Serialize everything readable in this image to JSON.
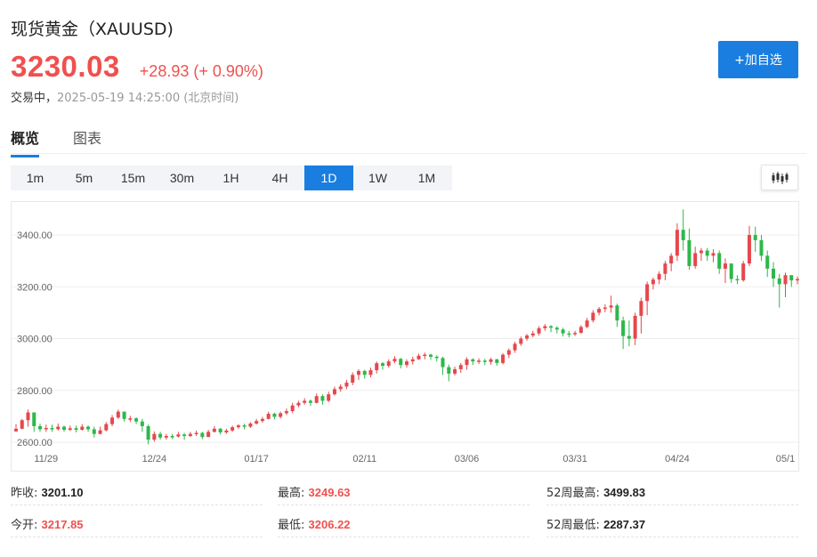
{
  "header": {
    "title": "现货黄金（XAUUSD)",
    "price": "3230.03",
    "change": "+28.93 (+ 0.90%)",
    "status": "交易中，",
    "timestamp": "2025-05-19 14:25:00  (北京时间)",
    "watch_label": "+加自选"
  },
  "tabs": [
    {
      "label": "概览",
      "active": true
    },
    {
      "label": "图表",
      "active": false
    }
  ],
  "periods": [
    {
      "label": "1m"
    },
    {
      "label": "5m"
    },
    {
      "label": "15m"
    },
    {
      "label": "30m"
    },
    {
      "label": "1H"
    },
    {
      "label": "4H"
    },
    {
      "label": "1D",
      "active": true
    },
    {
      "label": "1W"
    },
    {
      "label": "1M"
    }
  ],
  "chart_icon": "candlestick-icon",
  "chart_data": {
    "type": "candlestick",
    "ylim": [
      2600,
      3500
    ],
    "yticks": [
      "2600.00",
      "2800.00",
      "3000.00",
      "3200.00",
      "3400.00"
    ],
    "ytick_values": [
      2600,
      2800,
      3000,
      3200,
      3400
    ],
    "xticks": [
      {
        "label": "11/29",
        "index": 5
      },
      {
        "label": "12/24",
        "index": 23
      },
      {
        "label": "01/17",
        "index": 40
      },
      {
        "label": "02/11",
        "index": 58
      },
      {
        "label": "03/06",
        "index": 75
      },
      {
        "label": "03/31",
        "index": 93
      },
      {
        "label": "04/24",
        "index": 110
      },
      {
        "label": "05/1",
        "index": 128
      }
    ],
    "close": [
      2652,
      2685,
      2715,
      2662,
      2650,
      2655,
      2650,
      2660,
      2648,
      2654,
      2648,
      2660,
      2650,
      2632,
      2646,
      2670,
      2695,
      2718,
      2690,
      2692,
      2680,
      2662,
      2610,
      2632,
      2618,
      2624,
      2622,
      2630,
      2624,
      2632,
      2636,
      2620,
      2640,
      2652,
      2638,
      2645,
      2658,
      2665,
      2660,
      2672,
      2682,
      2690,
      2710,
      2698,
      2712,
      2720,
      2742,
      2752,
      2760,
      2752,
      2778,
      2760,
      2785,
      2805,
      2815,
      2830,
      2860,
      2875,
      2860,
      2878,
      2905,
      2895,
      2912,
      2922,
      2898,
      2912,
      2920,
      2934,
      2938,
      2930,
      2925,
      2890,
      2865,
      2882,
      2898,
      2920,
      2912,
      2915,
      2910,
      2920,
      2906,
      2938,
      2955,
      2980,
      3000,
      3012,
      3020,
      3040,
      3048,
      3042,
      3035,
      3020,
      3018,
      3022,
      3045,
      3070,
      3100,
      3115,
      3120,
      3128,
      3070,
      3010,
      3000,
      3088,
      3145,
      3210,
      3228,
      3250,
      3290,
      3320,
      3420,
      3380,
      3280,
      3330,
      3340,
      3320,
      3330,
      3270,
      3290,
      3230,
      3225,
      3290,
      3400,
      3380,
      3320,
      3270,
      3232,
      3210,
      3245,
      3225,
      3230
    ],
    "high": [
      2670,
      2690,
      2726,
      2712,
      2672,
      2668,
      2668,
      2672,
      2664,
      2664,
      2664,
      2670,
      2665,
      2660,
      2660,
      2678,
      2705,
      2726,
      2718,
      2702,
      2696,
      2690,
      2668,
      2642,
      2640,
      2632,
      2632,
      2640,
      2636,
      2640,
      2645,
      2640,
      2648,
      2662,
      2655,
      2652,
      2664,
      2670,
      2672,
      2678,
      2690,
      2698,
      2718,
      2714,
      2718,
      2730,
      2752,
      2760,
      2770,
      2765,
      2788,
      2785,
      2795,
      2815,
      2824,
      2840,
      2870,
      2882,
      2880,
      2888,
      2912,
      2910,
      2920,
      2932,
      2925,
      2920,
      2930,
      2942,
      2946,
      2942,
      2936,
      2930,
      2900,
      2892,
      2906,
      2928,
      2924,
      2924,
      2922,
      2926,
      2922,
      2944,
      2962,
      2988,
      3008,
      3018,
      3030,
      3048,
      3056,
      3052,
      3048,
      3042,
      3030,
      3030,
      3052,
      3080,
      3110,
      3122,
      3132,
      3166,
      3135,
      3085,
      3070,
      3100,
      3158,
      3220,
      3236,
      3260,
      3300,
      3330,
      3445,
      3499,
      3425,
      3355,
      3350,
      3350,
      3345,
      3340,
      3310,
      3290,
      3245,
      3300,
      3435,
      3432,
      3400,
      3340,
      3295,
      3250,
      3255,
      3245,
      3240
    ],
    "low": [
      2640,
      2650,
      2660,
      2640,
      2640,
      2640,
      2640,
      2645,
      2640,
      2643,
      2638,
      2645,
      2640,
      2618,
      2630,
      2642,
      2662,
      2690,
      2680,
      2678,
      2670,
      2640,
      2592,
      2602,
      2610,
      2610,
      2612,
      2618,
      2610,
      2620,
      2624,
      2612,
      2622,
      2638,
      2630,
      2632,
      2640,
      2652,
      2650,
      2655,
      2668,
      2675,
      2688,
      2688,
      2692,
      2705,
      2712,
      2735,
      2745,
      2740,
      2750,
      2745,
      2755,
      2780,
      2795,
      2805,
      2820,
      2840,
      2845,
      2850,
      2865,
      2880,
      2888,
      2905,
      2885,
      2888,
      2900,
      2918,
      2920,
      2918,
      2912,
      2860,
      2835,
      2858,
      2868,
      2880,
      2898,
      2902,
      2898,
      2900,
      2895,
      2900,
      2925,
      2945,
      2972,
      2992,
      3005,
      3012,
      3030,
      3025,
      3020,
      3008,
      3005,
      3010,
      3020,
      3040,
      3062,
      3090,
      3102,
      3100,
      3045,
      2960,
      2970,
      2975,
      3020,
      3090,
      3190,
      3210,
      3225,
      3260,
      3300,
      3340,
      3265,
      3270,
      3300,
      3300,
      3295,
      3250,
      3215,
      3215,
      3210,
      3220,
      3280,
      3335,
      3300,
      3238,
      3200,
      3120,
      3160,
      3200,
      3210
    ]
  },
  "stats": [
    {
      "label": "昨收:",
      "value": "3201.10",
      "tone": "neutral"
    },
    {
      "label": "最高:",
      "value": "3249.63",
      "tone": "up"
    },
    {
      "label": "52周最高:",
      "value": "3499.83",
      "tone": "neutral"
    },
    {
      "label": "今开:",
      "value": "3217.85",
      "tone": "up"
    },
    {
      "label": "最低:",
      "value": "3206.22",
      "tone": "up"
    },
    {
      "label": "52周最低:",
      "value": "2287.37",
      "tone": "neutral"
    }
  ]
}
